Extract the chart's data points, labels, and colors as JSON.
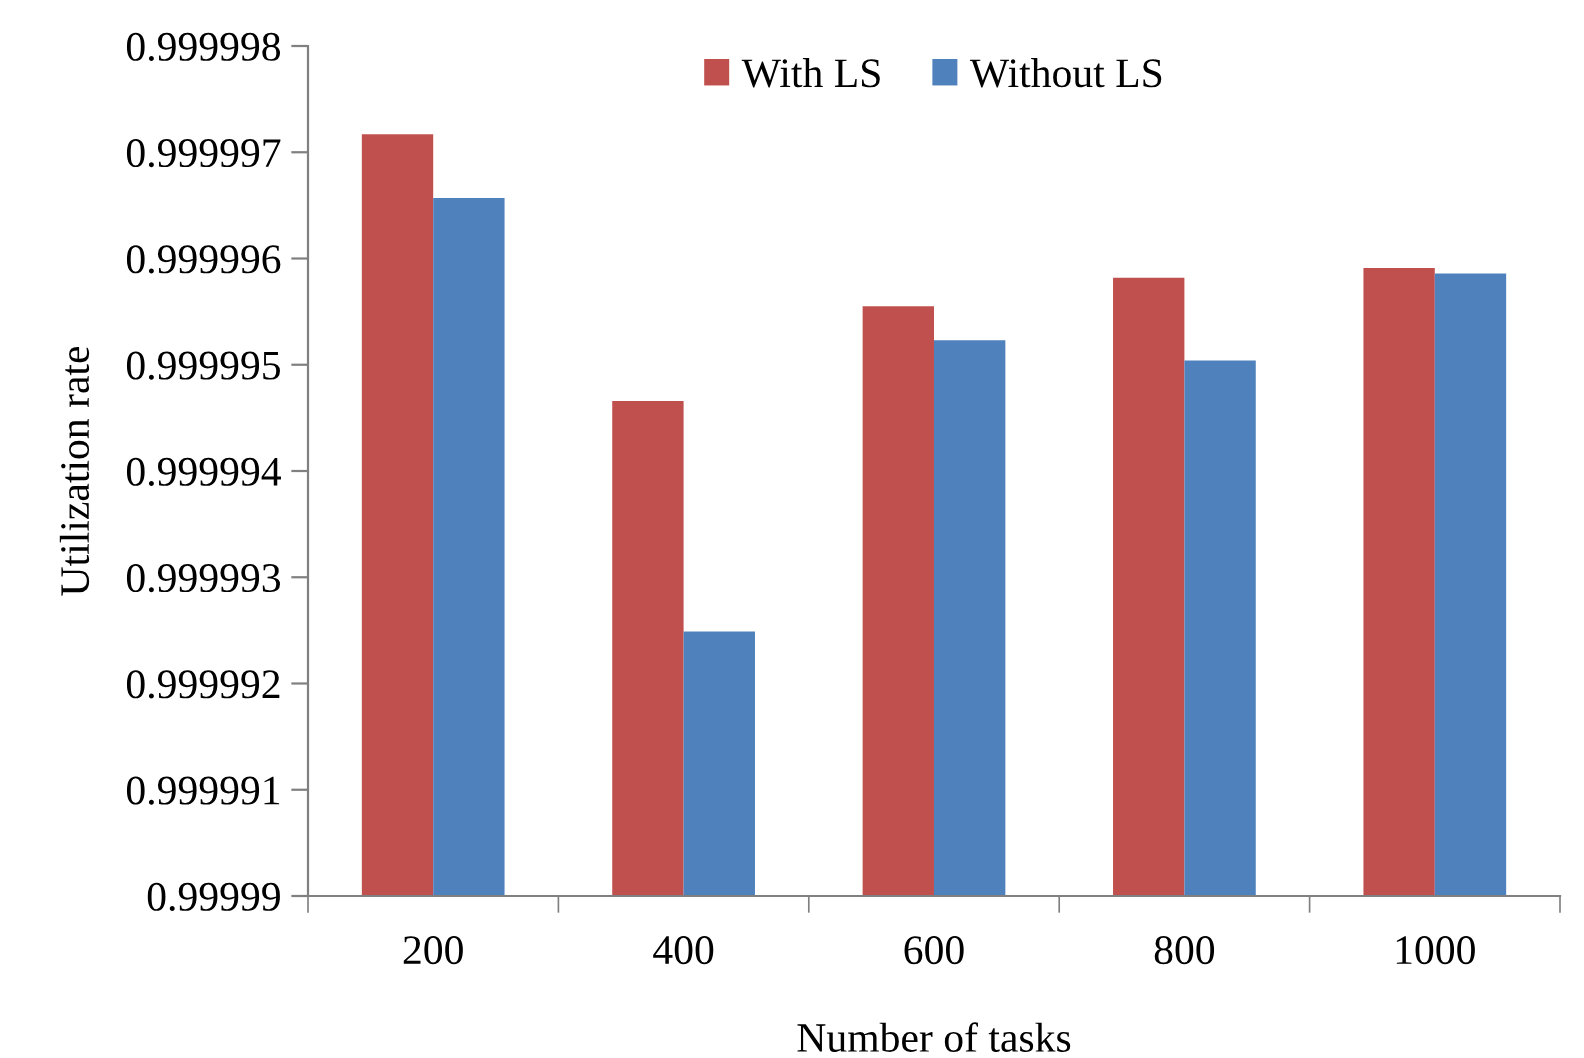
{
  "chart_data": {
    "type": "bar",
    "xlabel": "Number of tasks",
    "ylabel": "Utilization rate",
    "categories": [
      "200",
      "400",
      "600",
      "800",
      "1000"
    ],
    "series": [
      {
        "name": "With LS",
        "color": "#c0504d",
        "values": [
          0.99999717,
          0.99999466,
          0.99999555,
          0.99999582,
          0.99999591
        ]
      },
      {
        "name": "Without LS",
        "color": "#4f81bd",
        "values": [
          0.99999657,
          0.99999249,
          0.99999523,
          0.99999504,
          0.99999586
        ]
      }
    ],
    "ylim": [
      0.99999,
      0.999998
    ],
    "yticks": [
      0.99999,
      0.999991,
      0.999992,
      0.999993,
      0.999994,
      0.999995,
      0.999996,
      0.999997,
      0.999998
    ],
    "grid": false,
    "legend": "top"
  }
}
